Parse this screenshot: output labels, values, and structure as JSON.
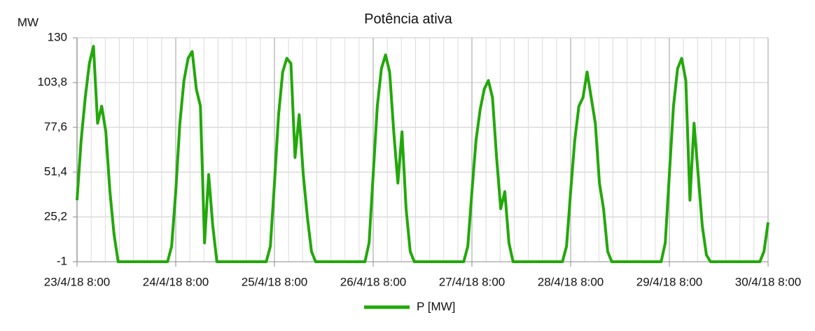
{
  "chart_data": {
    "type": "line",
    "title": "Potência ativa",
    "y_label": "MW",
    "x": [
      "2018-04-23 08:00",
      "2018-04-23 09:00",
      "2018-04-23 10:00",
      "2018-04-23 11:00",
      "2018-04-23 12:00",
      "2018-04-23 13:00",
      "2018-04-23 14:00",
      "2018-04-23 15:00",
      "2018-04-23 16:00",
      "2018-04-23 17:00",
      "2018-04-23 18:00",
      "2018-04-24 06:00",
      "2018-04-24 07:00",
      "2018-04-24 08:00",
      "2018-04-24 09:00",
      "2018-04-24 10:00",
      "2018-04-24 11:00",
      "2018-04-24 12:00",
      "2018-04-24 13:00",
      "2018-04-24 14:00",
      "2018-04-24 15:00",
      "2018-04-24 16:00",
      "2018-04-24 17:00",
      "2018-04-24 18:00",
      "2018-04-25 06:00",
      "2018-04-25 07:00",
      "2018-04-25 08:00",
      "2018-04-25 09:00",
      "2018-04-25 10:00",
      "2018-04-25 11:00",
      "2018-04-25 12:00",
      "2018-04-25 13:00",
      "2018-04-25 14:00",
      "2018-04-25 15:00",
      "2018-04-25 16:00",
      "2018-04-25 17:00",
      "2018-04-25 18:00",
      "2018-04-26 06:00",
      "2018-04-26 07:00",
      "2018-04-26 08:00",
      "2018-04-26 09:00",
      "2018-04-26 10:00",
      "2018-04-26 11:00",
      "2018-04-26 12:00",
      "2018-04-26 13:00",
      "2018-04-26 14:00",
      "2018-04-26 15:00",
      "2018-04-26 16:00",
      "2018-04-26 17:00",
      "2018-04-26 18:00",
      "2018-04-27 06:00",
      "2018-04-27 07:00",
      "2018-04-27 08:00",
      "2018-04-27 09:00",
      "2018-04-27 10:00",
      "2018-04-27 11:00",
      "2018-04-27 12:00",
      "2018-04-27 13:00",
      "2018-04-27 14:00",
      "2018-04-27 15:00",
      "2018-04-27 16:00",
      "2018-04-27 17:00",
      "2018-04-27 18:00",
      "2018-04-28 06:00",
      "2018-04-28 07:00",
      "2018-04-28 08:00",
      "2018-04-28 09:00",
      "2018-04-28 10:00",
      "2018-04-28 11:00",
      "2018-04-28 12:00",
      "2018-04-28 13:00",
      "2018-04-28 14:00",
      "2018-04-28 15:00",
      "2018-04-28 16:00",
      "2018-04-28 17:00",
      "2018-04-28 18:00",
      "2018-04-29 06:00",
      "2018-04-29 07:00",
      "2018-04-29 08:00",
      "2018-04-29 09:00",
      "2018-04-29 10:00",
      "2018-04-29 11:00",
      "2018-04-29 12:00",
      "2018-04-29 13:00",
      "2018-04-29 14:00",
      "2018-04-29 15:00",
      "2018-04-29 16:00",
      "2018-04-29 17:00",
      "2018-04-29 18:00",
      "2018-04-30 06:00",
      "2018-04-30 07:00",
      "2018-04-30 08:00"
    ],
    "series": [
      {
        "name": "P [MW]",
        "color": "#22a80a",
        "values": [
          35,
          70,
          95,
          115,
          125,
          80,
          90,
          75,
          40,
          15,
          -1,
          -1,
          8,
          40,
          80,
          105,
          118,
          122,
          100,
          90,
          10,
          50,
          20,
          -1,
          -1,
          8,
          45,
          85,
          110,
          118,
          115,
          60,
          85,
          50,
          25,
          5,
          -1,
          -1,
          10,
          50,
          90,
          112,
          120,
          110,
          75,
          45,
          75,
          30,
          5,
          -1,
          -1,
          8,
          40,
          70,
          88,
          100,
          105,
          95,
          60,
          30,
          40,
          10,
          -1,
          -1,
          8,
          40,
          70,
          90,
          95,
          110,
          95,
          80,
          45,
          30,
          5,
          -1,
          -1,
          10,
          50,
          90,
          112,
          118,
          105,
          35,
          80,
          50,
          20,
          3,
          -1,
          -1,
          5,
          22
        ]
      }
    ],
    "xlim": [
      "2018-04-23 08:00",
      "2018-04-30 08:00"
    ],
    "xticks": [
      {
        "value": "2018-04-23 08:00",
        "label": "23/4/18 8:00"
      },
      {
        "value": "2018-04-24 08:00",
        "label": "24/4/18 8:00"
      },
      {
        "value": "2018-04-25 08:00",
        "label": "25/4/18 8:00"
      },
      {
        "value": "2018-04-26 08:00",
        "label": "26/4/18 8:00"
      },
      {
        "value": "2018-04-27 08:00",
        "label": "27/4/18 8:00"
      },
      {
        "value": "2018-04-28 08:00",
        "label": "28/4/18 8:00"
      },
      {
        "value": "2018-04-29 08:00",
        "label": "29/4/18 8:00"
      },
      {
        "value": "2018-04-30 08:00",
        "label": "30/4/18 8:00"
      }
    ],
    "ylim": [
      -1,
      130
    ],
    "yticks": [
      -1,
      {
        "value": 25.2,
        "label": "25,2"
      },
      {
        "value": 51.4,
        "label": "51,4"
      },
      {
        "value": 77.6,
        "label": "77,6"
      },
      {
        "value": 103.8,
        "label": "103,8"
      },
      130
    ],
    "grid": true,
    "legend": "bottom"
  }
}
